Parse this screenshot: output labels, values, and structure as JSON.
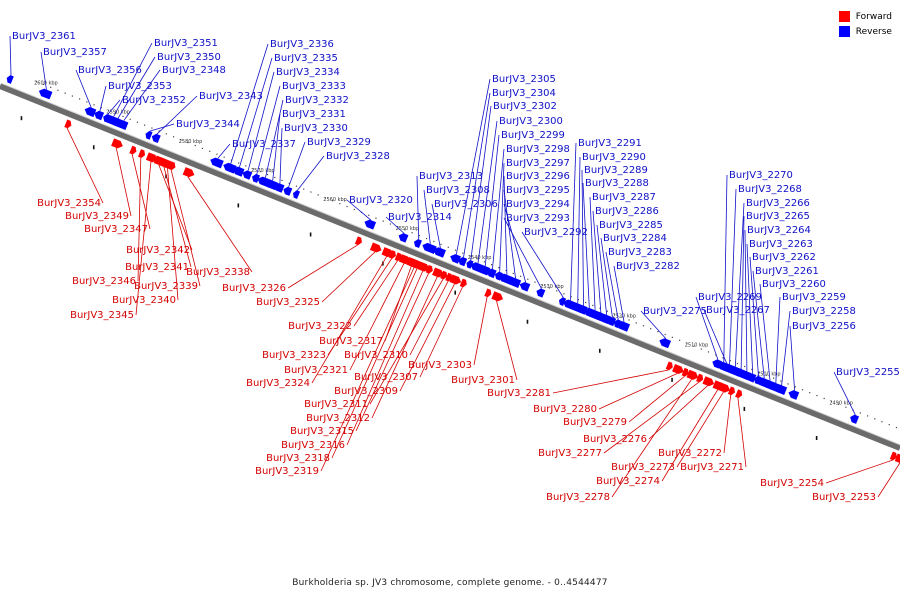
{
  "legend": {
    "items": [
      {
        "label": "Forward",
        "color": "#ff0000"
      },
      {
        "label": "Reverse",
        "color": "#0000ff"
      }
    ]
  },
  "caption": "Burkholderia sp. JV3 chromosome, complete genome. - 0..4544477",
  "axis": {
    "ticks": [
      "2600 kbp",
      "2590 kbp",
      "2580 kbp",
      "2570 kbp",
      "2560 kbp",
      "2550 kbp",
      "2540 kbp",
      "2530 kbp",
      "2520 kbp",
      "2510 kbp",
      "2500 kbp",
      "2490 kbp"
    ]
  },
  "colors": {
    "forward": "#ff0000",
    "reverse": "#0000ff",
    "forward_label": "#d40000",
    "reverse_label": "#1010c8",
    "axis": "#7a7a7a"
  },
  "forward_genes": [
    {
      "tag": "BurJV3_2354",
      "pos": 2594.0
    },
    {
      "tag": "BurJV3_2349",
      "pos": 2587.2
    },
    {
      "tag": "BurJV3_2347",
      "pos": 2585.0
    },
    {
      "tag": "BurJV3_2342",
      "pos": 2581.3
    },
    {
      "tag": "BurJV3_2346",
      "pos": 2583.8
    },
    {
      "tag": "BurJV3_2341",
      "pos": 2580.6
    },
    {
      "tag": "BurJV3_2339",
      "pos": 2579.6
    },
    {
      "tag": "BurJV3_2338",
      "pos": 2577.3
    },
    {
      "tag": "BurJV3_2340",
      "pos": 2580.1
    },
    {
      "tag": "BurJV3_2345",
      "pos": 2582.4
    },
    {
      "tag": "BurJV3_2326",
      "pos": 2553.8
    },
    {
      "tag": "BurJV3_2325",
      "pos": 2551.4
    },
    {
      "tag": "BurJV3_2322",
      "pos": 2548.3
    },
    {
      "tag": "BurJV3_2317",
      "pos": 2546.4
    },
    {
      "tag": "BurJV3_2323",
      "pos": 2549.1
    },
    {
      "tag": "BurJV3_2321",
      "pos": 2547.4
    },
    {
      "tag": "BurJV3_2310",
      "pos": 2541.3
    },
    {
      "tag": "BurJV3_2324",
      "pos": 2549.8
    },
    {
      "tag": "BurJV3_2307",
      "pos": 2539.3
    },
    {
      "tag": "BurJV3_2309",
      "pos": 2540.4
    },
    {
      "tag": "BurJV3_2311",
      "pos": 2542.0
    },
    {
      "tag": "BurJV3_2312",
      "pos": 2542.8
    },
    {
      "tag": "BurJV3_2315",
      "pos": 2544.0
    },
    {
      "tag": "BurJV3_2316",
      "pos": 2544.8
    },
    {
      "tag": "BurJV3_2318",
      "pos": 2545.6
    },
    {
      "tag": "BurJV3_2319",
      "pos": 2546.0
    },
    {
      "tag": "BurJV3_2303",
      "pos": 2535.9
    },
    {
      "tag": "BurJV3_2301",
      "pos": 2534.6
    },
    {
      "tag": "BurJV3_2281",
      "pos": 2510.8
    },
    {
      "tag": "BurJV3_2280",
      "pos": 2509.6
    },
    {
      "tag": "BurJV3_2279",
      "pos": 2508.6
    },
    {
      "tag": "BurJV3_2276",
      "pos": 2505.4
    },
    {
      "tag": "BurJV3_2277",
      "pos": 2506.6
    },
    {
      "tag": "BurJV3_2273",
      "pos": 2503.2
    },
    {
      "tag": "BurJV3_2272",
      "pos": 2502.2
    },
    {
      "tag": "BurJV3_2274",
      "pos": 2504.0
    },
    {
      "tag": "BurJV3_2271",
      "pos": 2501.2
    },
    {
      "tag": "BurJV3_2278",
      "pos": 2507.6
    },
    {
      "tag": "BurJV3_2254",
      "pos": 2479.8
    },
    {
      "tag": "BurJV3_2253",
      "pos": 2478.8
    }
  ],
  "reverse_genes": [
    {
      "tag": "BurJV3_2361",
      "pos": 2603.2
    },
    {
      "tag": "BurJV3_2357",
      "pos": 2598.3
    },
    {
      "tag": "BurJV3_2356",
      "pos": 2592.1
    },
    {
      "tag": "BurJV3_2353",
      "pos": 2590.9
    },
    {
      "tag": "BurJV3_2352",
      "pos": 2589.8
    },
    {
      "tag": "BurJV3_2351",
      "pos": 2589.0
    },
    {
      "tag": "BurJV3_2350",
      "pos": 2588.4
    },
    {
      "tag": "BurJV3_2348",
      "pos": 2587.6
    },
    {
      "tag": "BurJV3_2343",
      "pos": 2583.0
    },
    {
      "tag": "BurJV3_2344",
      "pos": 2584.0
    },
    {
      "tag": "BurJV3_2336",
      "pos": 2572.8
    },
    {
      "tag": "BurJV3_2335",
      "pos": 2571.6
    },
    {
      "tag": "BurJV3_2334",
      "pos": 2570.4
    },
    {
      "tag": "BurJV3_2333",
      "pos": 2569.2
    },
    {
      "tag": "BurJV3_2332",
      "pos": 2568.0
    },
    {
      "tag": "BurJV3_2331",
      "pos": 2567.0
    },
    {
      "tag": "BurJV3_2330",
      "pos": 2566.0
    },
    {
      "tag": "BurJV3_2329",
      "pos": 2564.8
    },
    {
      "tag": "BurJV3_2328",
      "pos": 2563.6
    },
    {
      "tag": "BurJV3_2337",
      "pos": 2574.6
    },
    {
      "tag": "BurJV3_2320",
      "pos": 2553.4
    },
    {
      "tag": "BurJV3_2314",
      "pos": 2548.8
    },
    {
      "tag": "BurJV3_2313",
      "pos": 2546.8
    },
    {
      "tag": "BurJV3_2308",
      "pos": 2545.2
    },
    {
      "tag": "BurJV3_2306",
      "pos": 2543.8
    },
    {
      "tag": "BurJV3_2305",
      "pos": 2541.6
    },
    {
      "tag": "BurJV3_2304",
      "pos": 2540.6
    },
    {
      "tag": "BurJV3_2302",
      "pos": 2539.6
    },
    {
      "tag": "BurJV3_2300",
      "pos": 2538.6
    },
    {
      "tag": "BurJV3_2299",
      "pos": 2537.6
    },
    {
      "tag": "BurJV3_2298",
      "pos": 2536.6
    },
    {
      "tag": "BurJV3_2297",
      "pos": 2535.6
    },
    {
      "tag": "BurJV3_2296",
      "pos": 2534.6
    },
    {
      "tag": "BurJV3_2295",
      "pos": 2533.4
    },
    {
      "tag": "BurJV3_2294",
      "pos": 2532.0
    },
    {
      "tag": "BurJV3_2293",
      "pos": 2529.8
    },
    {
      "tag": "BurJV3_2292",
      "pos": 2526.8
    },
    {
      "tag": "BurJV3_2291",
      "pos": 2525.8
    },
    {
      "tag": "BurJV3_2290",
      "pos": 2524.8
    },
    {
      "tag": "BurJV3_2289",
      "pos": 2524.0
    },
    {
      "tag": "BurJV3_2288",
      "pos": 2523.2
    },
    {
      "tag": "BurJV3_2287",
      "pos": 2522.4
    },
    {
      "tag": "BurJV3_2286",
      "pos": 2521.6
    },
    {
      "tag": "BurJV3_2285",
      "pos": 2520.8
    },
    {
      "tag": "BurJV3_2284",
      "pos": 2520.0
    },
    {
      "tag": "BurJV3_2283",
      "pos": 2519.2
    },
    {
      "tag": "BurJV3_2282",
      "pos": 2518.4
    },
    {
      "tag": "BurJV3_2275",
      "pos": 2512.6
    },
    {
      "tag": "BurJV3_2270",
      "pos": 2504.6
    },
    {
      "tag": "BurJV3_2268",
      "pos": 2503.8
    },
    {
      "tag": "BurJV3_2266",
      "pos": 2503.0
    },
    {
      "tag": "BurJV3_2265",
      "pos": 2502.2
    },
    {
      "tag": "BurJV3_2264",
      "pos": 2501.4
    },
    {
      "tag": "BurJV3_2263",
      "pos": 2500.6
    },
    {
      "tag": "BurJV3_2262",
      "pos": 2499.8
    },
    {
      "tag": "BurJV3_2261",
      "pos": 2499.0
    },
    {
      "tag": "BurJV3_2260",
      "pos": 2498.2
    },
    {
      "tag": "BurJV3_2269",
      "pos": 2505.4
    },
    {
      "tag": "BurJV3_2267",
      "pos": 2504.2
    },
    {
      "tag": "BurJV3_2259",
      "pos": 2497.4
    },
    {
      "tag": "BurJV3_2258",
      "pos": 2496.6
    },
    {
      "tag": "BurJV3_2256",
      "pos": 2494.8
    },
    {
      "tag": "BurJV3_2255",
      "pos": 2486.4
    }
  ]
}
